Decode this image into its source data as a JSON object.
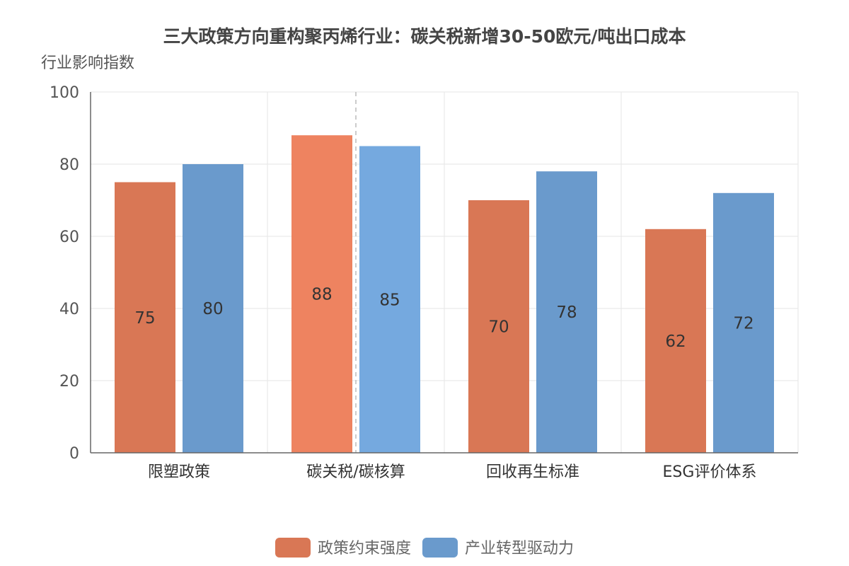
{
  "chart_data": {
    "type": "bar",
    "title": "三大政策方向重构聚丙烯行业：碳关税新增30-50欧元/吨出口成本",
    "ylabel": "行业影响指数",
    "xlabel": "",
    "ylim": [
      0,
      100
    ],
    "yticks": [
      0,
      20,
      40,
      60,
      80,
      100
    ],
    "categories": [
      "限塑政策",
      "碳关税/碳核算",
      "回收再生标准",
      "ESG评价体系"
    ],
    "series": [
      {
        "name": "政策约束强度",
        "values": [
          75,
          88,
          70,
          62
        ],
        "color": "#d97755"
      },
      {
        "name": "产业转型驱动力",
        "values": [
          80,
          85,
          78,
          72
        ],
        "color": "#6a9acc"
      }
    ],
    "highlight": {
      "category_index": 1,
      "colors": [
        "#ee8360",
        "#75a9df"
      ]
    },
    "grid": true,
    "legend_position": "bottom-center"
  }
}
